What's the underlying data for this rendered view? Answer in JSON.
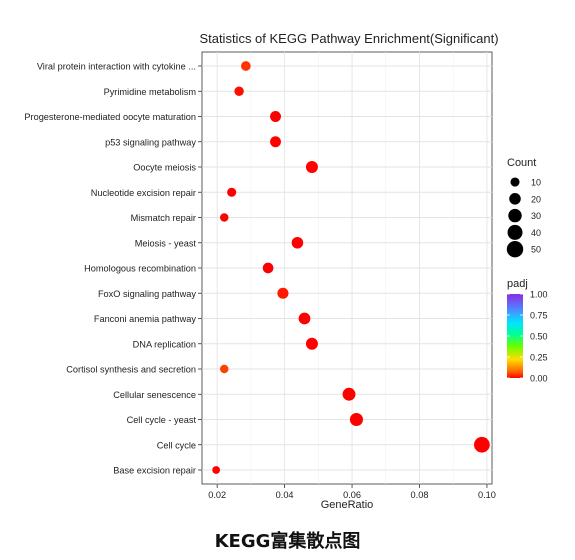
{
  "chart_data": {
    "type": "scatter",
    "title": "Statistics of KEGG Pathway Enrichment(Significant)",
    "xlabel": "GeneRatio",
    "ylabel": "",
    "xlim": [
      0.0155,
      0.1015
    ],
    "xticks": [
      0.02,
      0.04,
      0.06,
      0.08,
      0.1
    ],
    "xtick_labels": [
      "0.02",
      "0.04",
      "0.06",
      "0.08",
      "0.10"
    ],
    "grid": true,
    "categories": [
      "Viral protein interaction with cytokine ...",
      "Pyrimidine metabolism",
      "Progesterone-mediated oocyte maturation",
      "p53 signaling pathway",
      "Oocyte meiosis",
      "Nucleotide excision repair",
      "Mismatch repair",
      "Meiosis - yeast",
      "Homologous recombination",
      "FoxO signaling pathway",
      "Fanconi anemia pathway",
      "DNA replication",
      "Cortisol synthesis and secretion",
      "Cellular senescence",
      "Cell cycle - yeast",
      "Cell cycle",
      "Base excision repair"
    ],
    "points": [
      {
        "y": "Viral protein interaction with cytokine ...",
        "x": 0.0285,
        "count": 12,
        "padj": 0.04
      },
      {
        "y": "Pyrimidine metabolism",
        "x": 0.0265,
        "count": 11,
        "padj": 0.01
      },
      {
        "y": "Progesterone-mediated oocyte maturation",
        "x": 0.0373,
        "count": 17,
        "padj": 0.0
      },
      {
        "y": "p53 signaling pathway",
        "x": 0.0373,
        "count": 17,
        "padj": 0.0
      },
      {
        "y": "Oocyte meiosis",
        "x": 0.0481,
        "count": 22,
        "padj": 0.0
      },
      {
        "y": "Nucleotide excision repair",
        "x": 0.0243,
        "count": 10,
        "padj": 0.0
      },
      {
        "y": "Mismatch repair",
        "x": 0.0221,
        "count": 8,
        "padj": 0.0
      },
      {
        "y": "Meiosis - yeast",
        "x": 0.0438,
        "count": 20,
        "padj": 0.0
      },
      {
        "y": "Homologous recombination",
        "x": 0.0351,
        "count": 16,
        "padj": 0.0
      },
      {
        "y": "FoxO signaling pathway",
        "x": 0.0395,
        "count": 18,
        "padj": 0.02
      },
      {
        "y": "Fanconi anemia pathway",
        "x": 0.0459,
        "count": 21,
        "padj": 0.0
      },
      {
        "y": "DNA replication",
        "x": 0.0481,
        "count": 22,
        "padj": 0.0
      },
      {
        "y": "Cortisol synthesis and secretion",
        "x": 0.0221,
        "count": 8,
        "padj": 0.05
      },
      {
        "y": "Cellular senescence",
        "x": 0.0591,
        "count": 27,
        "padj": 0.0
      },
      {
        "y": "Cell cycle - yeast",
        "x": 0.0613,
        "count": 28,
        "padj": 0.0
      },
      {
        "y": "Cell cycle",
        "x": 0.0985,
        "count": 45,
        "padj": 0.0
      },
      {
        "y": "Base excision repair",
        "x": 0.0197,
        "count": 6,
        "padj": 0.0
      }
    ],
    "legend_size": {
      "title": "Count",
      "values": [
        10,
        20,
        30,
        40,
        50
      ],
      "labels": [
        "10",
        "20",
        "30",
        "40",
        "50"
      ]
    },
    "legend_color": {
      "title": "padj",
      "range": [
        0.0,
        1.0
      ],
      "ticks": [
        1.0,
        0.75,
        0.5,
        0.25,
        0.0
      ],
      "tick_labels": [
        "1.00",
        "0.75",
        "0.50",
        "0.25",
        "0.00"
      ],
      "colors": [
        "#ff0000",
        "#ff8c00",
        "#ffff00",
        "#00ff00",
        "#00ffff",
        "#3f7fff",
        "#8a2be2"
      ]
    },
    "legend_placement": "right"
  },
  "caption": "KEGG富集散点图"
}
